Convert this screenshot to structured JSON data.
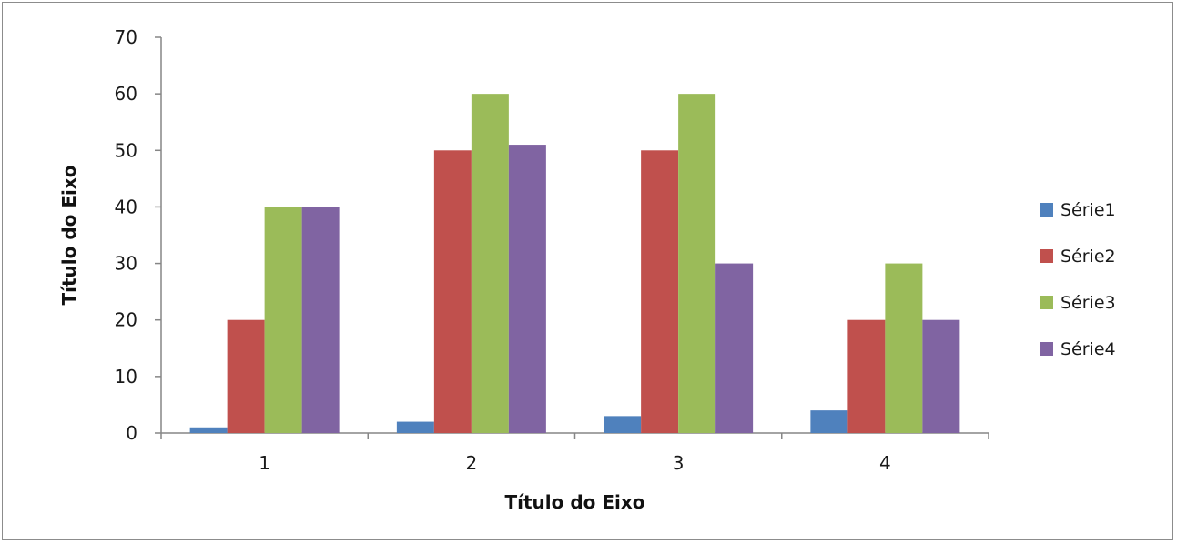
{
  "chart_data": {
    "type": "bar",
    "categories": [
      "1",
      "2",
      "3",
      "4"
    ],
    "series": [
      {
        "name": "Série1",
        "values": [
          1,
          2,
          3,
          4
        ],
        "color": "#4f81bd"
      },
      {
        "name": "Série2",
        "values": [
          20,
          50,
          50,
          20
        ],
        "color": "#c0504d"
      },
      {
        "name": "Série3",
        "values": [
          40,
          60,
          60,
          30
        ],
        "color": "#9bbb59"
      },
      {
        "name": "Série4",
        "values": [
          40,
          51,
          30,
          20
        ],
        "color": "#8064a2"
      }
    ],
    "xlabel": "Título do Eixo",
    "ylabel": "Título do Eixo",
    "ylim": [
      0,
      70
    ],
    "yticks": [
      "0",
      "10",
      "20",
      "30",
      "40",
      "50",
      "60",
      "70"
    ],
    "grid": false,
    "legend": "right"
  }
}
